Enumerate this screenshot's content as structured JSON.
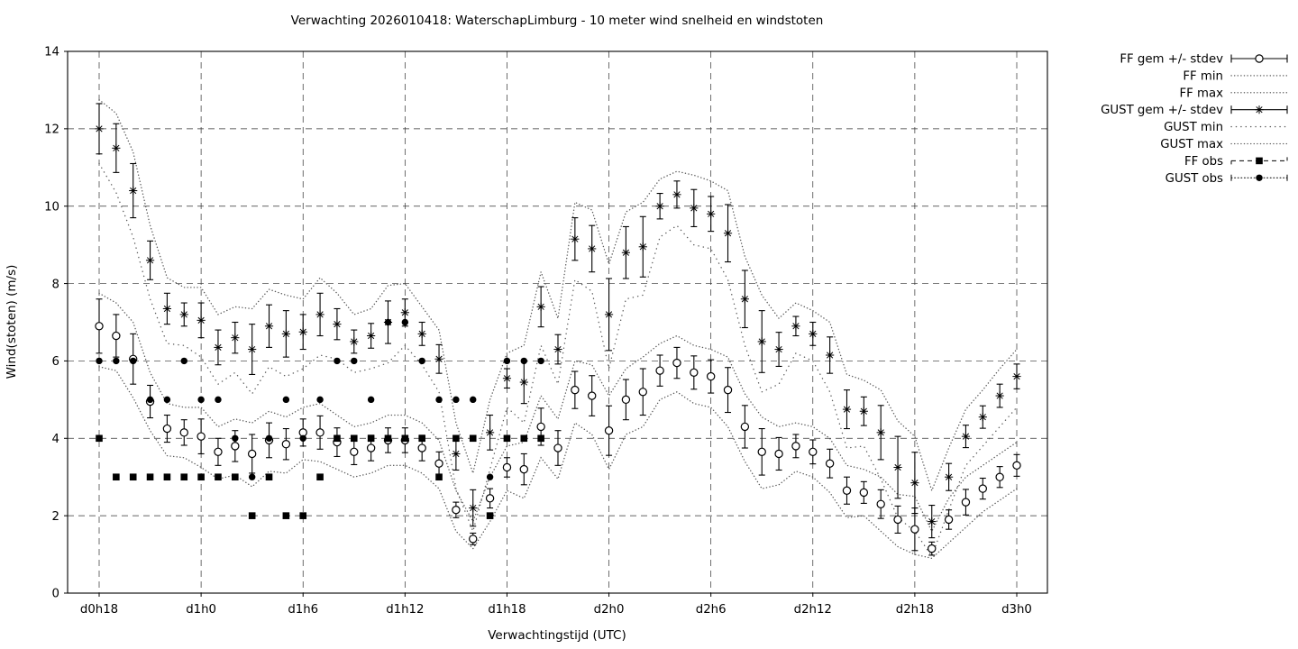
{
  "title": "Verwachting 2026010418: WaterschapLimburg - 10 meter wind snelheid en windstoten",
  "x_axis": {
    "title": "Verwachtingstijd (UTC)",
    "tick_labels": [
      "d0h18",
      "d1h0",
      "d1h6",
      "d1h12",
      "d1h18",
      "d2h0",
      "d2h6",
      "d2h12",
      "d2h18",
      "d3h0"
    ],
    "tick_hours": [
      0,
      6,
      12,
      18,
      24,
      30,
      36,
      42,
      48,
      54
    ]
  },
  "y_axis": {
    "title": "Wind(stoten) (m/s)",
    "ticks": [
      0,
      2,
      4,
      6,
      8,
      10,
      12,
      14
    ],
    "range": [
      0,
      14
    ]
  },
  "legend": [
    {
      "label": "FF gem +/- stdev",
      "style": "errorbar-circle"
    },
    {
      "label": "FF min",
      "style": "dotted-fine"
    },
    {
      "label": "FF max",
      "style": "dotted-fine"
    },
    {
      "label": "GUST gem +/- stdev",
      "style": "errorbar-asterisk"
    },
    {
      "label": "GUST min",
      "style": "dotted-coarse"
    },
    {
      "label": "GUST max",
      "style": "dotted-fine"
    },
    {
      "label": "FF obs",
      "style": "dashed-square"
    },
    {
      "label": "GUST obs",
      "style": "dotted-dot"
    }
  ],
  "colors": {
    "foreground": "#000000",
    "dotted_curves": "#5a5a5a",
    "grid": "#303030",
    "background": "#ffffff"
  },
  "chart_data": {
    "type": "line",
    "title": "Verwachting 2026010418: WaterschapLimburg - 10 meter wind snelheid en windstoten",
    "xlabel": "Verwachtingstijd (UTC)",
    "ylabel": "Wind(stoten) (m/s)",
    "ylim": [
      0,
      14
    ],
    "grid": true,
    "legend_position": "outside-right-top",
    "x_start_hour": 0,
    "x_step_hours": 1,
    "x_end_hour": 54,
    "series": [
      {
        "name": "FF gem",
        "marker": "open-circle",
        "style": "errorbar",
        "values": [
          6.9,
          6.65,
          6.05,
          4.95,
          4.25,
          4.15,
          4.05,
          3.65,
          3.8,
          3.6,
          3.95,
          3.85,
          4.15,
          4.15,
          3.9,
          3.65,
          3.75,
          3.95,
          3.95,
          3.75,
          3.35,
          2.15,
          1.4,
          2.45,
          3.25,
          3.2,
          4.3,
          3.75,
          5.25,
          5.1,
          4.2,
          5.0,
          5.2,
          5.75,
          5.95,
          5.7,
          5.6,
          5.25,
          4.3,
          3.65,
          3.6,
          3.8,
          3.65,
          3.35,
          2.65,
          2.6,
          2.3,
          1.9,
          1.65,
          1.15,
          1.9,
          2.35,
          2.7,
          3.0,
          3.3
        ],
        "stdev": [
          0.7,
          0.55,
          0.65,
          0.42,
          0.35,
          0.33,
          0.45,
          0.35,
          0.4,
          0.5,
          0.45,
          0.4,
          0.35,
          0.43,
          0.37,
          0.33,
          0.33,
          0.32,
          0.32,
          0.33,
          0.3,
          0.2,
          0.15,
          0.25,
          0.25,
          0.4,
          0.48,
          0.45,
          0.48,
          0.52,
          0.64,
          0.52,
          0.6,
          0.4,
          0.4,
          0.43,
          0.43,
          0.58,
          0.55,
          0.6,
          0.42,
          0.3,
          0.31,
          0.37,
          0.35,
          0.28,
          0.37,
          0.35,
          0.55,
          0.17,
          0.25,
          0.33,
          0.27,
          0.27,
          0.28
        ]
      },
      {
        "name": "FF min",
        "style": "dotted",
        "values": [
          5.85,
          5.75,
          5.05,
          4.2,
          3.55,
          3.5,
          3.25,
          2.95,
          3.05,
          2.75,
          3.15,
          3.1,
          3.45,
          3.4,
          3.2,
          3.0,
          3.1,
          3.3,
          3.3,
          3.1,
          2.7,
          1.6,
          1.15,
          1.85,
          2.65,
          2.45,
          3.5,
          2.95,
          4.4,
          4.1,
          3.2,
          4.1,
          4.3,
          5.0,
          5.2,
          4.9,
          4.8,
          4.3,
          3.4,
          2.7,
          2.8,
          3.15,
          3.0,
          2.6,
          1.95,
          2.0,
          1.6,
          1.2,
          1.0,
          0.9,
          1.3,
          1.7,
          2.1,
          2.4,
          2.7
        ]
      },
      {
        "name": "FF max",
        "style": "dotted",
        "values": [
          7.75,
          7.5,
          7.0,
          5.7,
          4.9,
          4.8,
          4.8,
          4.3,
          4.5,
          4.4,
          4.7,
          4.55,
          4.8,
          4.9,
          4.6,
          4.3,
          4.4,
          4.6,
          4.6,
          4.4,
          3.95,
          2.65,
          1.85,
          3.0,
          3.8,
          3.9,
          5.1,
          4.5,
          6.0,
          5.9,
          5.1,
          5.8,
          6.1,
          6.45,
          6.65,
          6.4,
          6.3,
          6.1,
          5.15,
          4.55,
          4.3,
          4.4,
          4.3,
          4.0,
          3.3,
          3.2,
          3.0,
          2.55,
          2.5,
          1.6,
          2.45,
          3.0,
          3.3,
          3.6,
          3.9
        ]
      },
      {
        "name": "GUST gem",
        "marker": "asterisk",
        "style": "errorbar",
        "values": [
          12.0,
          11.5,
          10.4,
          8.6,
          7.35,
          7.2,
          7.05,
          6.35,
          6.6,
          6.3,
          6.9,
          6.7,
          6.75,
          7.2,
          6.95,
          6.5,
          6.65,
          7.0,
          7.25,
          6.7,
          6.05,
          3.6,
          2.2,
          4.15,
          5.55,
          5.45,
          7.4,
          6.3,
          9.15,
          8.9,
          7.2,
          8.8,
          8.95,
          10.0,
          10.3,
          9.95,
          9.8,
          9.3,
          7.6,
          6.5,
          6.3,
          6.9,
          6.7,
          6.15,
          4.75,
          4.7,
          4.15,
          3.25,
          2.85,
          1.85,
          3.0,
          4.05,
          4.55,
          5.1,
          5.6
        ],
        "stdev": [
          0.65,
          0.63,
          0.7,
          0.5,
          0.4,
          0.3,
          0.45,
          0.45,
          0.4,
          0.65,
          0.55,
          0.6,
          0.45,
          0.55,
          0.4,
          0.3,
          0.32,
          0.55,
          0.35,
          0.3,
          0.37,
          0.42,
          0.47,
          0.45,
          0.25,
          0.55,
          0.52,
          0.38,
          0.55,
          0.6,
          0.93,
          0.67,
          0.78,
          0.33,
          0.35,
          0.48,
          0.45,
          0.74,
          0.74,
          0.8,
          0.44,
          0.25,
          0.3,
          0.47,
          0.5,
          0.37,
          0.7,
          0.8,
          0.79,
          0.42,
          0.35,
          0.29,
          0.29,
          0.3,
          0.32
        ]
      },
      {
        "name": "GUST min",
        "style": "dotted-coarse",
        "values": [
          11.1,
          10.35,
          9.2,
          7.6,
          6.45,
          6.4,
          6.1,
          5.4,
          5.7,
          5.15,
          5.85,
          5.6,
          5.8,
          6.15,
          6.05,
          5.7,
          5.8,
          5.95,
          6.4,
          5.9,
          5.2,
          2.7,
          1.6,
          3.2,
          4.8,
          4.4,
          6.4,
          5.4,
          8.1,
          7.8,
          5.8,
          7.6,
          7.7,
          9.2,
          9.5,
          9.0,
          8.9,
          8.1,
          6.4,
          5.2,
          5.4,
          6.2,
          6.0,
          5.2,
          3.75,
          3.8,
          2.95,
          1.95,
          1.6,
          0.95,
          2.15,
          3.3,
          3.8,
          4.3,
          4.8
        ]
      },
      {
        "name": "GUST max",
        "style": "dotted",
        "values": [
          12.75,
          12.4,
          11.4,
          9.5,
          8.15,
          7.9,
          7.9,
          7.2,
          7.4,
          7.35,
          7.85,
          7.7,
          7.6,
          8.15,
          7.75,
          7.2,
          7.35,
          7.95,
          8.0,
          7.4,
          6.8,
          4.4,
          3.1,
          5.0,
          6.2,
          6.4,
          8.3,
          7.1,
          10.1,
          9.9,
          8.5,
          9.85,
          10.1,
          10.7,
          10.9,
          10.8,
          10.65,
          10.4,
          8.7,
          7.7,
          7.1,
          7.5,
          7.3,
          7.0,
          5.65,
          5.5,
          5.25,
          4.45,
          4.05,
          2.65,
          3.75,
          4.75,
          5.25,
          5.8,
          6.3
        ]
      },
      {
        "name": "FF obs",
        "marker": "filled-square",
        "style": "points",
        "hours": [
          0,
          1,
          2,
          3,
          4,
          5,
          6,
          7,
          8,
          9,
          10,
          11,
          12,
          13,
          14,
          15,
          16,
          17,
          18,
          19,
          20,
          21,
          22,
          23,
          24,
          25,
          26
        ],
        "values": [
          4,
          3,
          3,
          3,
          3,
          3,
          3,
          3,
          3,
          2,
          3,
          2,
          2,
          3,
          4,
          4,
          4,
          4,
          4,
          4,
          3,
          4,
          4,
          2,
          4,
          4,
          4
        ]
      },
      {
        "name": "GUST obs",
        "marker": "filled-circle",
        "style": "points",
        "hours": [
          0,
          1,
          2,
          3,
          4,
          5,
          6,
          7,
          8,
          9,
          10,
          11,
          12,
          13,
          14,
          15,
          16,
          17,
          18,
          19,
          20,
          21,
          22,
          23,
          24,
          25,
          26
        ],
        "values": [
          6,
          6,
          6,
          5,
          5,
          6,
          5,
          5,
          4,
          3,
          4,
          5,
          4,
          5,
          6,
          6,
          5,
          7,
          7,
          6,
          5,
          5,
          5,
          3,
          6,
          6,
          6
        ]
      }
    ]
  }
}
